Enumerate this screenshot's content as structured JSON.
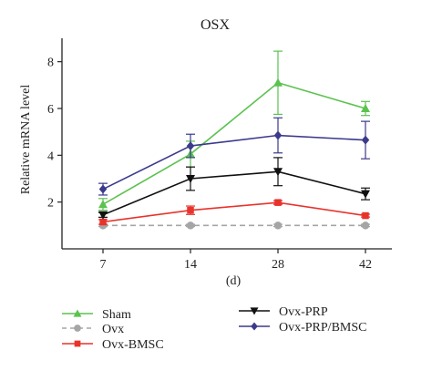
{
  "chart_data": {
    "type": "line",
    "title": "OSX",
    "xlabel": "(d)",
    "ylabel": "Relative mRNA level",
    "x": [
      7,
      14,
      28,
      42
    ],
    "ylim": [
      0,
      9
    ],
    "yticks": [
      2,
      4,
      6,
      8
    ],
    "grid": false,
    "legend_position": "bottom",
    "series": [
      {
        "name": "Sham",
        "values": [
          1.9,
          4.05,
          7.1,
          6.0
        ],
        "errors": [
          0.25,
          0.55,
          1.35,
          0.3
        ],
        "color": "#5cc24f",
        "marker": "triangle-up",
        "dashed": false
      },
      {
        "name": "Ovx",
        "values": [
          1.0,
          1.0,
          1.0,
          1.0
        ],
        "errors": [
          0.05,
          0.05,
          0.05,
          0.05
        ],
        "color": "#a5a5a5",
        "marker": "circle",
        "dashed": true
      },
      {
        "name": "Ovx-BMSC",
        "values": [
          1.15,
          1.65,
          1.98,
          1.42
        ],
        "errors": [
          0.1,
          0.18,
          0.08,
          0.06
        ],
        "color": "#e8332c",
        "marker": "square",
        "dashed": false
      },
      {
        "name": "Ovx-PRP",
        "values": [
          1.45,
          3.0,
          3.3,
          2.35
        ],
        "errors": [
          0.1,
          0.5,
          0.6,
          0.25
        ],
        "color": "#111111",
        "marker": "triangle-down",
        "dashed": false
      },
      {
        "name": "Ovx-PRP/BMSC",
        "values": [
          2.55,
          4.4,
          4.85,
          4.65
        ],
        "errors": [
          0.25,
          0.5,
          0.75,
          0.8
        ],
        "color": "#3b3a8c",
        "marker": "diamond",
        "dashed": false
      }
    ]
  }
}
